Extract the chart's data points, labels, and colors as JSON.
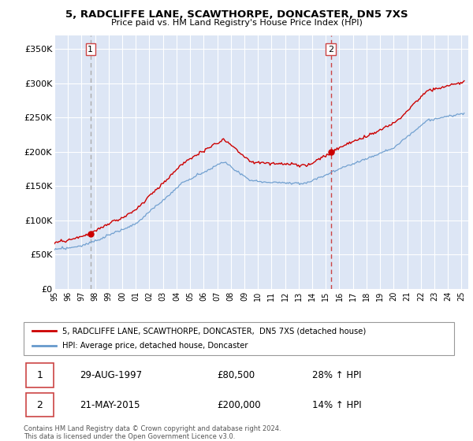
{
  "title1": "5, RADCLIFFE LANE, SCAWTHORPE, DONCASTER, DN5 7XS",
  "title2": "Price paid vs. HM Land Registry's House Price Index (HPI)",
  "ylabel_ticks": [
    "£0",
    "£50K",
    "£100K",
    "£150K",
    "£200K",
    "£250K",
    "£300K",
    "£350K"
  ],
  "ytick_values": [
    0,
    50000,
    100000,
    150000,
    200000,
    250000,
    300000,
    350000
  ],
  "ylim": [
    0,
    370000
  ],
  "xlim_start": 1995.0,
  "xlim_end": 2025.5,
  "purchase1_year": 1997.66,
  "purchase1_price": 80500,
  "purchase1_label": "1",
  "purchase1_date": "29-AUG-1997",
  "purchase1_amount": "£80,500",
  "purchase1_pct": "28% ↑ HPI",
  "purchase2_year": 2015.38,
  "purchase2_price": 200000,
  "purchase2_label": "2",
  "purchase2_date": "21-MAY-2015",
  "purchase2_amount": "£200,000",
  "purchase2_pct": "14% ↑ HPI",
  "legend_line1": "5, RADCLIFFE LANE, SCAWTHORPE, DONCASTER,  DN5 7XS (detached house)",
  "legend_line2": "HPI: Average price, detached house, Doncaster",
  "footer1": "Contains HM Land Registry data © Crown copyright and database right 2024.",
  "footer2": "This data is licensed under the Open Government Licence v3.0.",
  "price_color": "#cc0000",
  "hpi_color": "#6699cc",
  "bg_color": "#dde6f5",
  "grid_color": "#ffffff",
  "vline1_color": "#cc4444",
  "vline2_color": "#cc4444"
}
